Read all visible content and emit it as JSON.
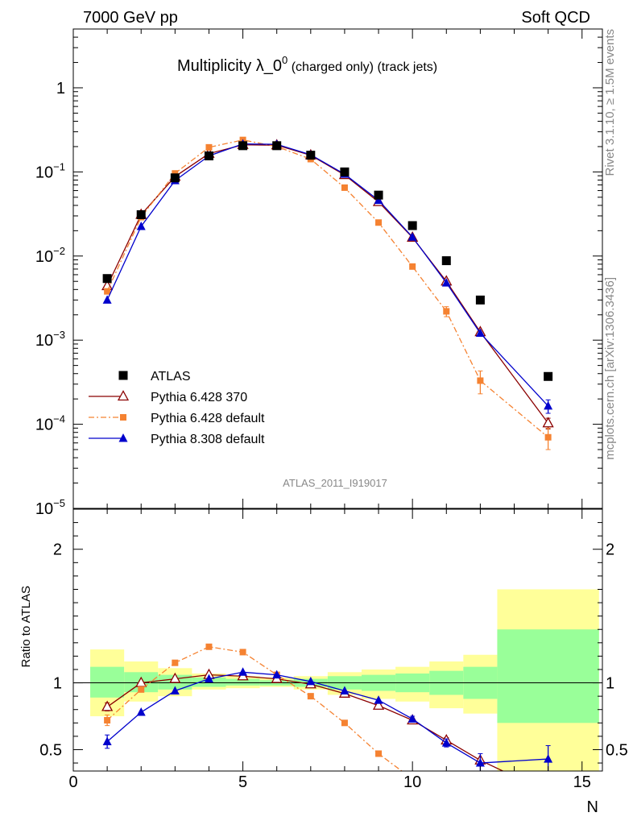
{
  "header": {
    "left": "7000 GeV pp",
    "right": "Soft QCD"
  },
  "side_labels": {
    "top": "Rivet 3.1.10, ≥ 1.5M events",
    "bottom": "mcplots.cern.ch [arXiv:1306.3436]"
  },
  "chart_data": [
    {
      "type": "scatter",
      "panel": "main",
      "title_main": "Multiplicity λ_0",
      "title_sup": "0",
      "title_sub": " (charged only) (track jets)",
      "analysis_tag": "ATLAS_2011_I919017",
      "xlim": [
        0,
        15.6
      ],
      "ylim": [
        1e-05,
        5
      ],
      "yscale": "log",
      "ytick_labels": [
        {
          "value": 1,
          "base": "1",
          "exp": ""
        },
        {
          "value": 0.1,
          "base": "10",
          "exp": "−1"
        },
        {
          "value": 0.01,
          "base": "10",
          "exp": "−2"
        },
        {
          "value": 0.001,
          "base": "10",
          "exp": "−3"
        },
        {
          "value": 0.0001,
          "base": "10",
          "exp": "−4"
        },
        {
          "value": 1e-05,
          "base": "10",
          "exp": "−5"
        }
      ],
      "legend_position": "bottom-left",
      "series": [
        {
          "name": "ATLAS",
          "color": "#000000",
          "marker": "square",
          "line": "none",
          "x": [
            1,
            2,
            3,
            4,
            5,
            6,
            7,
            8,
            9,
            10,
            11,
            12,
            14
          ],
          "y": [
            0.0054,
            0.031,
            0.085,
            0.155,
            0.205,
            0.205,
            0.158,
            0.1,
            0.053,
            0.023,
            0.0088,
            0.003,
            0.00037
          ]
        },
        {
          "name": "Pythia 6.428 370",
          "color": "#8b0000",
          "marker": "triangle-open",
          "line": "solid",
          "x": [
            1,
            2,
            3,
            4,
            5,
            6,
            7,
            8,
            9,
            10,
            11,
            12,
            14
          ],
          "y": [
            0.0044,
            0.031,
            0.088,
            0.165,
            0.21,
            0.208,
            0.158,
            0.092,
            0.044,
            0.0166,
            0.005,
            0.00125,
            0.000103
          ],
          "err": [
            0,
            0,
            0,
            0,
            0,
            0,
            0,
            0,
            0,
            0,
            0,
            0,
            1.5e-05
          ]
        },
        {
          "name": "Pythia 6.428 default",
          "color": "#f58231",
          "marker": "square-small",
          "line": "dashdot",
          "x": [
            1,
            2,
            3,
            4,
            5,
            6,
            7,
            8,
            9,
            10,
            11,
            12,
            14
          ],
          "y": [
            0.0038,
            0.029,
            0.096,
            0.196,
            0.24,
            0.2,
            0.142,
            0.065,
            0.025,
            0.0075,
            0.0022,
            0.00033,
            7e-05
          ],
          "err": [
            0,
            0,
            0,
            0,
            0,
            0,
            0,
            0,
            0,
            0,
            0.0003,
            0.0001,
            2e-05
          ]
        },
        {
          "name": "Pythia 8.308 default",
          "color": "#0000cc",
          "marker": "triangle",
          "line": "solid",
          "x": [
            1,
            2,
            3,
            4,
            5,
            6,
            7,
            8,
            9,
            10,
            11,
            12,
            14
          ],
          "y": [
            0.003,
            0.0225,
            0.079,
            0.155,
            0.215,
            0.213,
            0.16,
            0.094,
            0.046,
            0.0168,
            0.0048,
            0.00121,
            0.000165
          ],
          "err": [
            0,
            0,
            0,
            0,
            0,
            0,
            0,
            0,
            0,
            0,
            0,
            0,
            3e-05
          ]
        }
      ]
    },
    {
      "type": "line",
      "panel": "ratio",
      "ylabel": "Ratio to ATLAS",
      "xlabel": "N",
      "xlim": [
        0,
        15.6
      ],
      "ylim": [
        0.34,
        2.3
      ],
      "xticks": [
        0,
        5,
        10,
        15
      ],
      "yticks": [
        0.5,
        1,
        2
      ],
      "reference_line": 1,
      "bands": [
        {
          "x0": 0.5,
          "x1": 1.5,
          "green": [
            0.89,
            1.12
          ],
          "yellow": [
            0.75,
            1.25
          ]
        },
        {
          "x0": 1.5,
          "x1": 2.5,
          "green": [
            0.93,
            1.08
          ],
          "yellow": [
            0.86,
            1.16
          ]
        },
        {
          "x0": 2.5,
          "x1": 3.5,
          "green": [
            0.95,
            1.06
          ],
          "yellow": [
            0.9,
            1.11
          ]
        },
        {
          "x0": 3.5,
          "x1": 4.5,
          "green": [
            0.97,
            1.04
          ],
          "yellow": [
            0.95,
            1.07
          ]
        },
        {
          "x0": 4.5,
          "x1": 5.5,
          "green": [
            0.98,
            1.03
          ],
          "yellow": [
            0.96,
            1.05
          ]
        },
        {
          "x0": 5.5,
          "x1": 6.5,
          "green": [
            0.98,
            1.02
          ],
          "yellow": [
            0.97,
            1.04
          ]
        },
        {
          "x0": 6.5,
          "x1": 7.5,
          "green": [
            0.97,
            1.03
          ],
          "yellow": [
            0.95,
            1.05
          ]
        },
        {
          "x0": 7.5,
          "x1": 8.5,
          "green": [
            0.95,
            1.05
          ],
          "yellow": [
            0.91,
            1.08
          ]
        },
        {
          "x0": 8.5,
          "x1": 9.5,
          "green": [
            0.94,
            1.06
          ],
          "yellow": [
            0.88,
            1.1
          ]
        },
        {
          "x0": 9.5,
          "x1": 10.5,
          "green": [
            0.93,
            1.07
          ],
          "yellow": [
            0.86,
            1.12
          ]
        },
        {
          "x0": 10.5,
          "x1": 11.5,
          "green": [
            0.91,
            1.09
          ],
          "yellow": [
            0.81,
            1.16
          ]
        },
        {
          "x0": 11.5,
          "x1": 12.5,
          "green": [
            0.88,
            1.12
          ],
          "yellow": [
            0.77,
            1.21
          ]
        },
        {
          "x0": 12.5,
          "x1": 15.5,
          "green": [
            0.7,
            1.4
          ],
          "yellow": [
            0.34,
            1.7
          ]
        }
      ],
      "series": [
        {
          "name": "Pythia 6.428 370",
          "color": "#8b0000",
          "marker": "triangle-open",
          "line": "solid",
          "x": [
            1,
            2,
            3,
            4,
            5,
            6,
            7,
            8,
            9,
            10,
            11,
            12,
            13
          ],
          "y": [
            0.82,
            1.0,
            1.03,
            1.06,
            1.05,
            1.03,
            0.99,
            0.92,
            0.83,
            0.72,
            0.57,
            0.42,
            0.3
          ],
          "err": [
            0.03,
            0,
            0,
            0,
            0,
            0,
            0,
            0,
            0,
            0,
            0.02,
            0,
            0
          ]
        },
        {
          "name": "Pythia 6.428 default",
          "color": "#f58231",
          "marker": "square-small",
          "line": "dashdot",
          "x": [
            1,
            2,
            3,
            4,
            5,
            6,
            7,
            8,
            9,
            10
          ],
          "y": [
            0.72,
            0.95,
            1.15,
            1.27,
            1.23,
            1.06,
            0.9,
            0.7,
            0.47,
            0.28
          ],
          "err": [
            0.04,
            0,
            0,
            0,
            0,
            0,
            0,
            0,
            0.02,
            0
          ]
        },
        {
          "name": "Pythia 8.308 default",
          "color": "#0000cc",
          "marker": "triangle",
          "line": "solid",
          "x": [
            1,
            2,
            3,
            4,
            5,
            6,
            7,
            8,
            9,
            10,
            11,
            12,
            14
          ],
          "y": [
            0.56,
            0.78,
            0.94,
            1.03,
            1.08,
            1.06,
            1.01,
            0.94,
            0.87,
            0.73,
            0.55,
            0.4,
            0.43
          ],
          "err": [
            0.05,
            0,
            0,
            0,
            0,
            0,
            0,
            0,
            0,
            0.02,
            0.03,
            0.07,
            0.1
          ]
        }
      ]
    }
  ]
}
